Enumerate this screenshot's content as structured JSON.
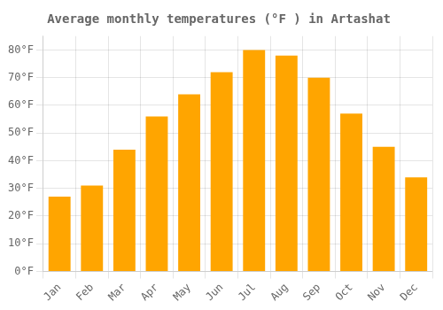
{
  "chart_data": {
    "type": "bar",
    "title": "Average monthly temperatures (°F ) in Artashat",
    "categories": [
      "Jan",
      "Feb",
      "Mar",
      "Apr",
      "May",
      "Jun",
      "Jul",
      "Aug",
      "Sep",
      "Oct",
      "Nov",
      "Dec"
    ],
    "values": [
      27,
      31,
      44,
      56,
      64,
      72,
      80,
      78,
      70,
      57,
      45,
      34
    ],
    "color": "#FFA500",
    "ylim": [
      0,
      85
    ],
    "yticks": [
      {
        "value": 0,
        "label": "0°F"
      },
      {
        "value": 10,
        "label": "10°F"
      },
      {
        "value": 20,
        "label": "20°F"
      },
      {
        "value": 30,
        "label": "30°F"
      },
      {
        "value": 40,
        "label": "40°F"
      },
      {
        "value": 50,
        "label": "50°F"
      },
      {
        "value": 60,
        "label": "60°F"
      },
      {
        "value": 70,
        "label": "70°F"
      },
      {
        "value": 80,
        "label": "80°F"
      }
    ],
    "grid": true
  }
}
